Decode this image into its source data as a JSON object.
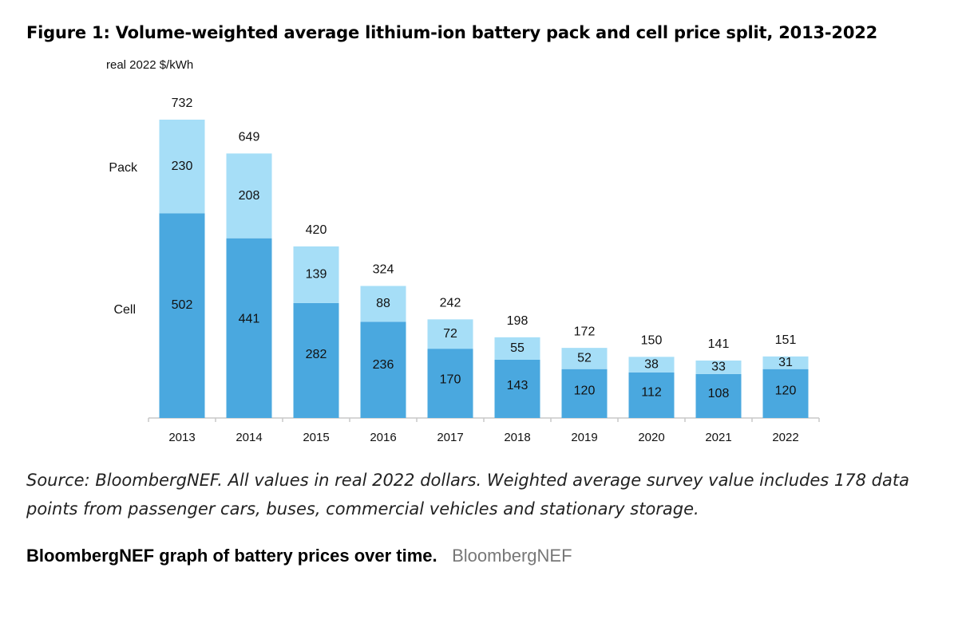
{
  "figure": {
    "title": "Figure 1: Volume-weighted average lithium-ion battery pack and cell price split, 2013-2022",
    "source_note": "Source: BloombergNEF. All values in real 2022 dollars. Weighted average survey value includes 178 data points from passenger cars, buses, commercial vehicles and stationary storage.",
    "caption": "BloombergNEF graph of battery prices over time.",
    "credit": "BloombergNEF"
  },
  "chart_data": {
    "type": "bar",
    "stacked": true,
    "ylabel": "real 2022 $/kWh",
    "categories": [
      "2013",
      "2014",
      "2015",
      "2016",
      "2017",
      "2018",
      "2019",
      "2020",
      "2021",
      "2022"
    ],
    "series": [
      {
        "name": "Cell",
        "values": [
          502,
          441,
          282,
          236,
          170,
          143,
          120,
          112,
          108,
          120
        ],
        "color": "#4aa8df"
      },
      {
        "name": "Pack",
        "values": [
          230,
          208,
          139,
          88,
          72,
          55,
          52,
          38,
          33,
          31
        ],
        "color": "#a6def7"
      }
    ],
    "totals": [
      732,
      649,
      420,
      324,
      242,
      198,
      172,
      150,
      141,
      151
    ],
    "ylim": [
      0,
      800
    ],
    "grid": false,
    "legend": "left, inline series labels"
  }
}
